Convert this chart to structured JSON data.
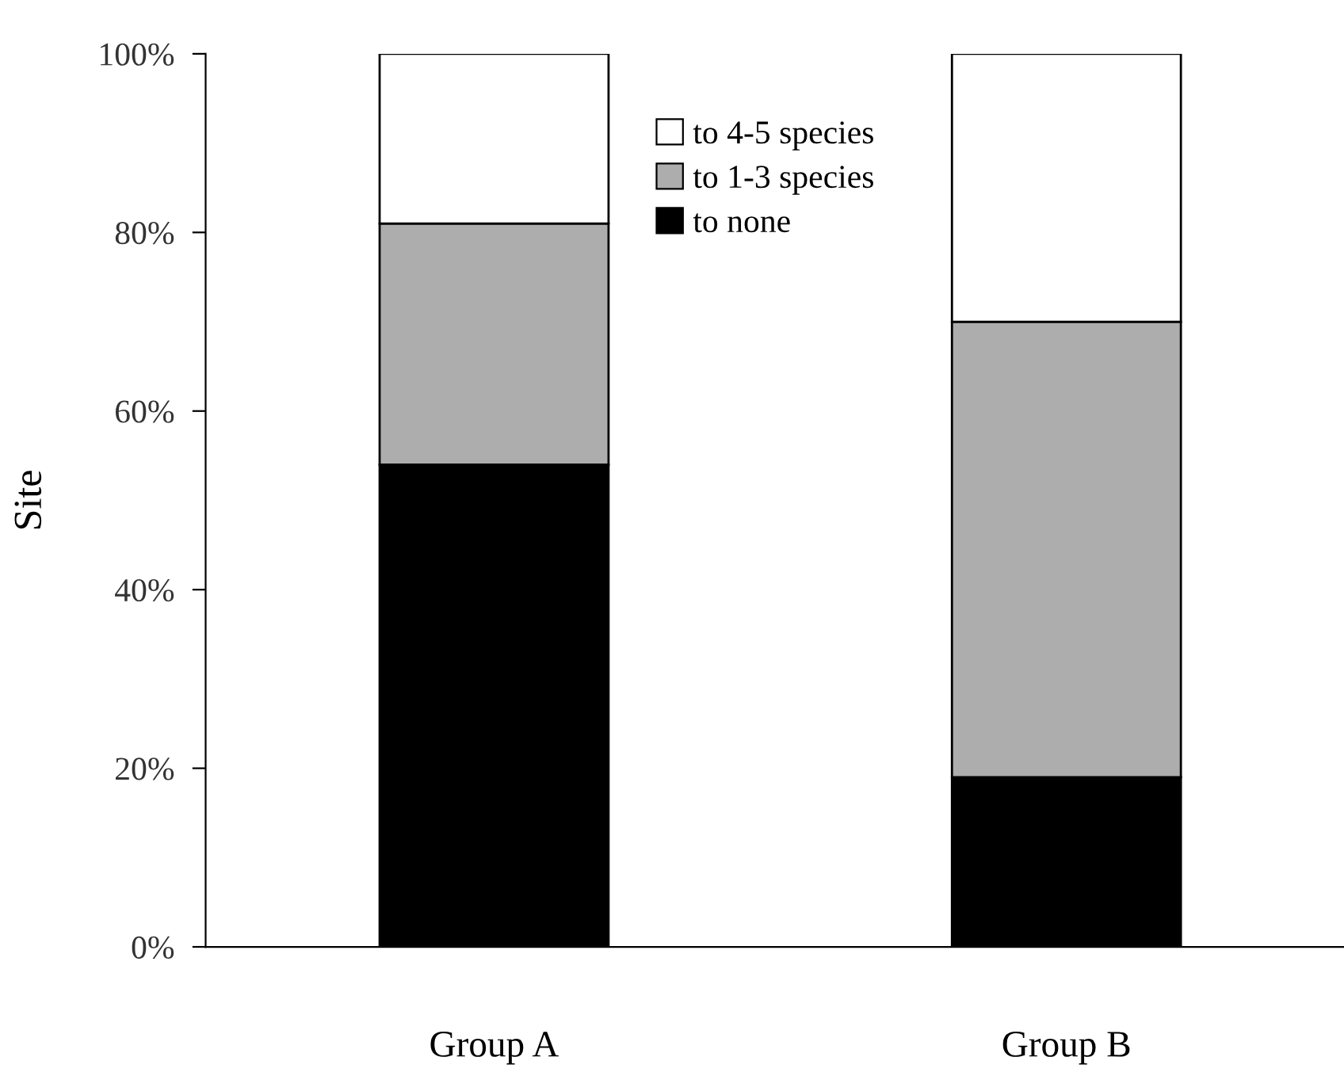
{
  "chart_data": {
    "type": "bar",
    "stacked": true,
    "ylabel": "Site",
    "categories": [
      "Group A",
      "Group B"
    ],
    "series": [
      {
        "name": "to none",
        "color": "#000000",
        "values": [
          54,
          19
        ]
      },
      {
        "name": "to 1-3 species",
        "color": "#adadad",
        "values": [
          27,
          51
        ]
      },
      {
        "name": "to 4-5 species",
        "color": "#ffffff",
        "values": [
          19,
          30
        ]
      }
    ],
    "ylim": [
      0,
      100
    ],
    "yticks": [
      {
        "value": 0,
        "label": "0%"
      },
      {
        "value": 20,
        "label": "20%"
      },
      {
        "value": 40,
        "label": "40%"
      },
      {
        "value": 60,
        "label": "60%"
      },
      {
        "value": 80,
        "label": "80%"
      },
      {
        "value": 100,
        "label": "100%"
      }
    ],
    "grid": false,
    "legend": "top"
  }
}
